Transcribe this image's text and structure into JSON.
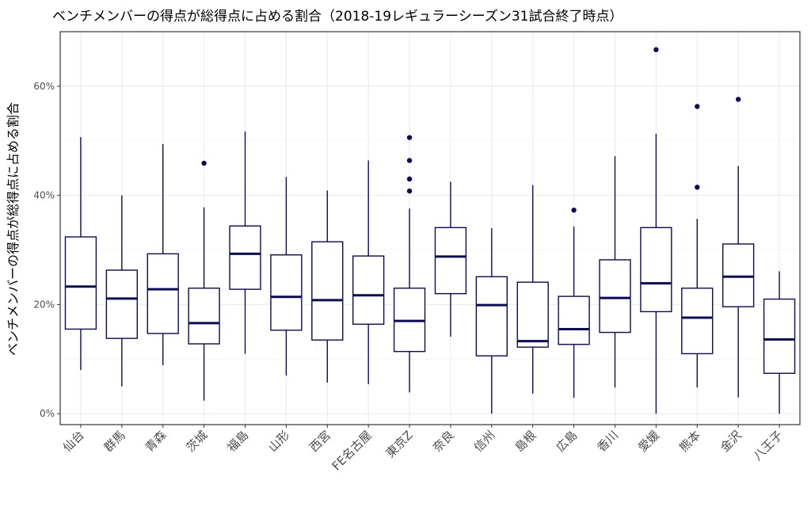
{
  "chart_data": {
    "type": "boxplot",
    "title": "ベンチメンバーの得点が総得点に占める割合（2018-19レギュラーシーズン31試合終了時点）",
    "xlabel": "",
    "ylabel": "ベンチメンバーの得点が総得点に占める割合",
    "ylim": [
      -2,
      70
    ],
    "yticks": [
      0,
      20,
      40,
      60
    ],
    "ytick_labels": [
      "0%",
      "20%",
      "40%",
      "60%"
    ],
    "grid": true,
    "colors": {
      "box": "#0a0a5e",
      "grid": "#ebebeb",
      "border": "#333333"
    },
    "categories": [
      "仙台",
      "群馬",
      "青森",
      "茨城",
      "福島",
      "山形",
      "西宮",
      "FE名古屋",
      "東京Z",
      "奈良",
      "信州",
      "島根",
      "広島",
      "香川",
      "愛媛",
      "熊本",
      "金沢",
      "八王子"
    ],
    "boxes": [
      {
        "min": 8.0,
        "q1": 15.5,
        "median": 23.3,
        "q3": 32.4,
        "max": 50.7,
        "outliers": []
      },
      {
        "min": 5.0,
        "q1": 13.8,
        "median": 21.1,
        "q3": 26.3,
        "max": 40.0,
        "outliers": []
      },
      {
        "min": 8.9,
        "q1": 14.7,
        "median": 22.8,
        "q3": 29.3,
        "max": 49.4,
        "outliers": []
      },
      {
        "min": 2.4,
        "q1": 12.8,
        "median": 16.6,
        "q3": 23.0,
        "max": 37.8,
        "outliers": [
          45.9
        ]
      },
      {
        "min": 11.0,
        "q1": 22.8,
        "median": 29.3,
        "q3": 34.4,
        "max": 51.7,
        "outliers": []
      },
      {
        "min": 7.0,
        "q1": 15.3,
        "median": 21.4,
        "q3": 29.1,
        "max": 43.4,
        "outliers": []
      },
      {
        "min": 5.7,
        "q1": 13.5,
        "median": 20.8,
        "q3": 31.5,
        "max": 40.9,
        "outliers": []
      },
      {
        "min": 5.4,
        "q1": 16.4,
        "median": 21.7,
        "q3": 28.9,
        "max": 46.4,
        "outliers": []
      },
      {
        "min": 3.9,
        "q1": 11.4,
        "median": 17.0,
        "q3": 23.0,
        "max": 37.6,
        "outliers": [
          50.6,
          46.4,
          43.0,
          40.8
        ]
      },
      {
        "min": 14.1,
        "q1": 22.0,
        "median": 28.8,
        "q3": 34.1,
        "max": 42.5,
        "outliers": []
      },
      {
        "min": 0.0,
        "q1": 10.6,
        "median": 19.9,
        "q3": 25.1,
        "max": 34.0,
        "outliers": []
      },
      {
        "min": 3.7,
        "q1": 12.2,
        "median": 13.3,
        "q3": 24.1,
        "max": 41.9,
        "outliers": []
      },
      {
        "min": 2.9,
        "q1": 12.7,
        "median": 15.5,
        "q3": 21.5,
        "max": 34.3,
        "outliers": [
          37.3
        ]
      },
      {
        "min": 4.8,
        "q1": 14.9,
        "median": 21.2,
        "q3": 28.2,
        "max": 47.2,
        "outliers": []
      },
      {
        "min": 0.0,
        "q1": 18.7,
        "median": 23.9,
        "q3": 34.1,
        "max": 51.3,
        "outliers": [
          66.7
        ]
      },
      {
        "min": 4.8,
        "q1": 11.0,
        "median": 17.6,
        "q3": 23.0,
        "max": 35.7,
        "outliers": [
          56.3,
          41.5
        ]
      },
      {
        "min": 3.0,
        "q1": 19.6,
        "median": 25.1,
        "q3": 31.1,
        "max": 45.4,
        "outliers": [
          57.6
        ]
      },
      {
        "min": 0.0,
        "q1": 7.4,
        "median": 13.6,
        "q3": 21.0,
        "max": 26.1,
        "outliers": []
      }
    ]
  }
}
